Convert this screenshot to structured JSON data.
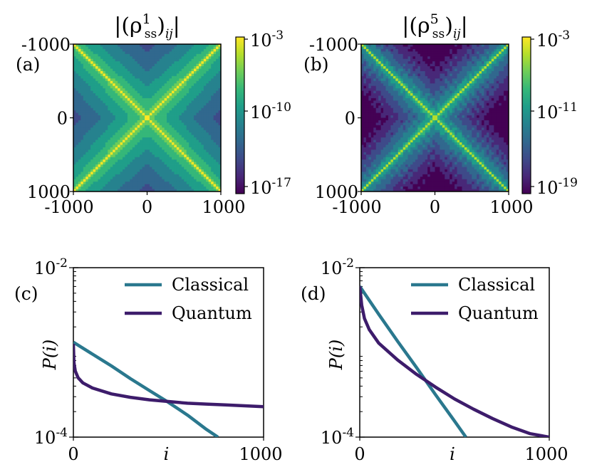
{
  "colors": {
    "classical": "#2a788e",
    "quantum": "#3d1c6b",
    "viridis": [
      "#440154",
      "#482878",
      "#3e4a89",
      "#31688e",
      "#26828e",
      "#1f9e89",
      "#35b779",
      "#6dcd59",
      "#b4de2c",
      "#fde725"
    ]
  },
  "chart_data": [
    {
      "panel": "a",
      "type": "heatmap",
      "label": "(a)",
      "title": "|(ρ1ss)ij|",
      "title_main": "|(ρ",
      "title_sup": "1",
      "title_sub": "ss",
      "title_tail": ")ij|",
      "title_tail_sub": "ij",
      "xticks": [
        "-1000",
        "0",
        "1000"
      ],
      "yticks": [
        "-1000",
        "0",
        "1000"
      ],
      "xlim": [
        -1000,
        1000
      ],
      "ylim": [
        1000,
        -1000
      ],
      "colorbar": {
        "ticks": [
          "10",
          "10",
          "10"
        ],
        "exponents": [
          "-3",
          "-10",
          "-17"
        ],
        "range_log10": [
          -17,
          -3
        ]
      },
      "style": "broad"
    },
    {
      "panel": "b",
      "type": "heatmap",
      "label": "(b)",
      "title": "|(ρ5ss)ij|",
      "title_main": "|(ρ",
      "title_sup": "5",
      "title_sub": "ss",
      "title_tail": ")ij|",
      "title_tail_sub": "ij",
      "xticks": [
        "-1000",
        "0",
        "1000"
      ],
      "yticks": [
        "-1000",
        "0",
        "1000"
      ],
      "xlim": [
        -1000,
        1000
      ],
      "ylim": [
        1000,
        -1000
      ],
      "colorbar": {
        "ticks": [
          "10",
          "10",
          "10"
        ],
        "exponents": [
          "-3",
          "-11",
          "-19"
        ],
        "range_log10": [
          -19,
          -3
        ]
      },
      "style": "narrow"
    },
    {
      "panel": "c",
      "type": "line",
      "label": "(c)",
      "xlabel": "i",
      "ylabel": "P(i)",
      "xlim": [
        0,
        1000
      ],
      "ylim_log10": [
        -4,
        -2
      ],
      "yticks": [
        {
          "base": "10",
          "exp": "-2"
        },
        {
          "base": "10",
          "exp": "-4"
        }
      ],
      "xticks": [
        "0",
        "1000"
      ],
      "legend_position": "top-right",
      "series": [
        {
          "name": "Classical",
          "x": [
            0,
            100,
            200,
            300,
            400,
            500,
            600,
            700,
            760
          ],
          "log10y": [
            -2.88,
            -3.02,
            -3.16,
            -3.31,
            -3.45,
            -3.59,
            -3.74,
            -3.91,
            -4.0
          ]
        },
        {
          "name": "Quantum",
          "x": [
            0,
            3,
            10,
            25,
            50,
            100,
            200,
            300,
            400,
            500,
            600,
            700,
            800,
            900,
            1000
          ],
          "log10y": [
            -2.9,
            -3.12,
            -3.22,
            -3.3,
            -3.36,
            -3.42,
            -3.49,
            -3.53,
            -3.56,
            -3.58,
            -3.6,
            -3.61,
            -3.62,
            -3.63,
            -3.64
          ]
        }
      ]
    },
    {
      "panel": "d",
      "type": "line",
      "label": "(d)",
      "xlabel": "i",
      "ylabel": "P(i)",
      "xlim": [
        0,
        1000
      ],
      "ylim_log10": [
        -4,
        -2
      ],
      "yticks": [
        {
          "base": "10",
          "exp": "-2"
        },
        {
          "base": "10",
          "exp": "-4"
        }
      ],
      "xticks": [
        "0",
        "1000"
      ],
      "legend_position": "top-right",
      "series": [
        {
          "name": "Classical",
          "x": [
            0,
            100,
            200,
            300,
            400,
            500,
            560
          ],
          "log10y": [
            -2.22,
            -2.55,
            -2.87,
            -3.18,
            -3.5,
            -3.81,
            -4.0
          ]
        },
        {
          "name": "Quantum",
          "x": [
            0,
            10,
            25,
            50,
            100,
            200,
            300,
            400,
            500,
            600,
            700,
            800,
            900,
            1000
          ],
          "log10y": [
            -2.22,
            -2.44,
            -2.6,
            -2.73,
            -2.89,
            -3.09,
            -3.26,
            -3.41,
            -3.55,
            -3.67,
            -3.78,
            -3.88,
            -3.96,
            -4.0
          ]
        }
      ]
    }
  ]
}
